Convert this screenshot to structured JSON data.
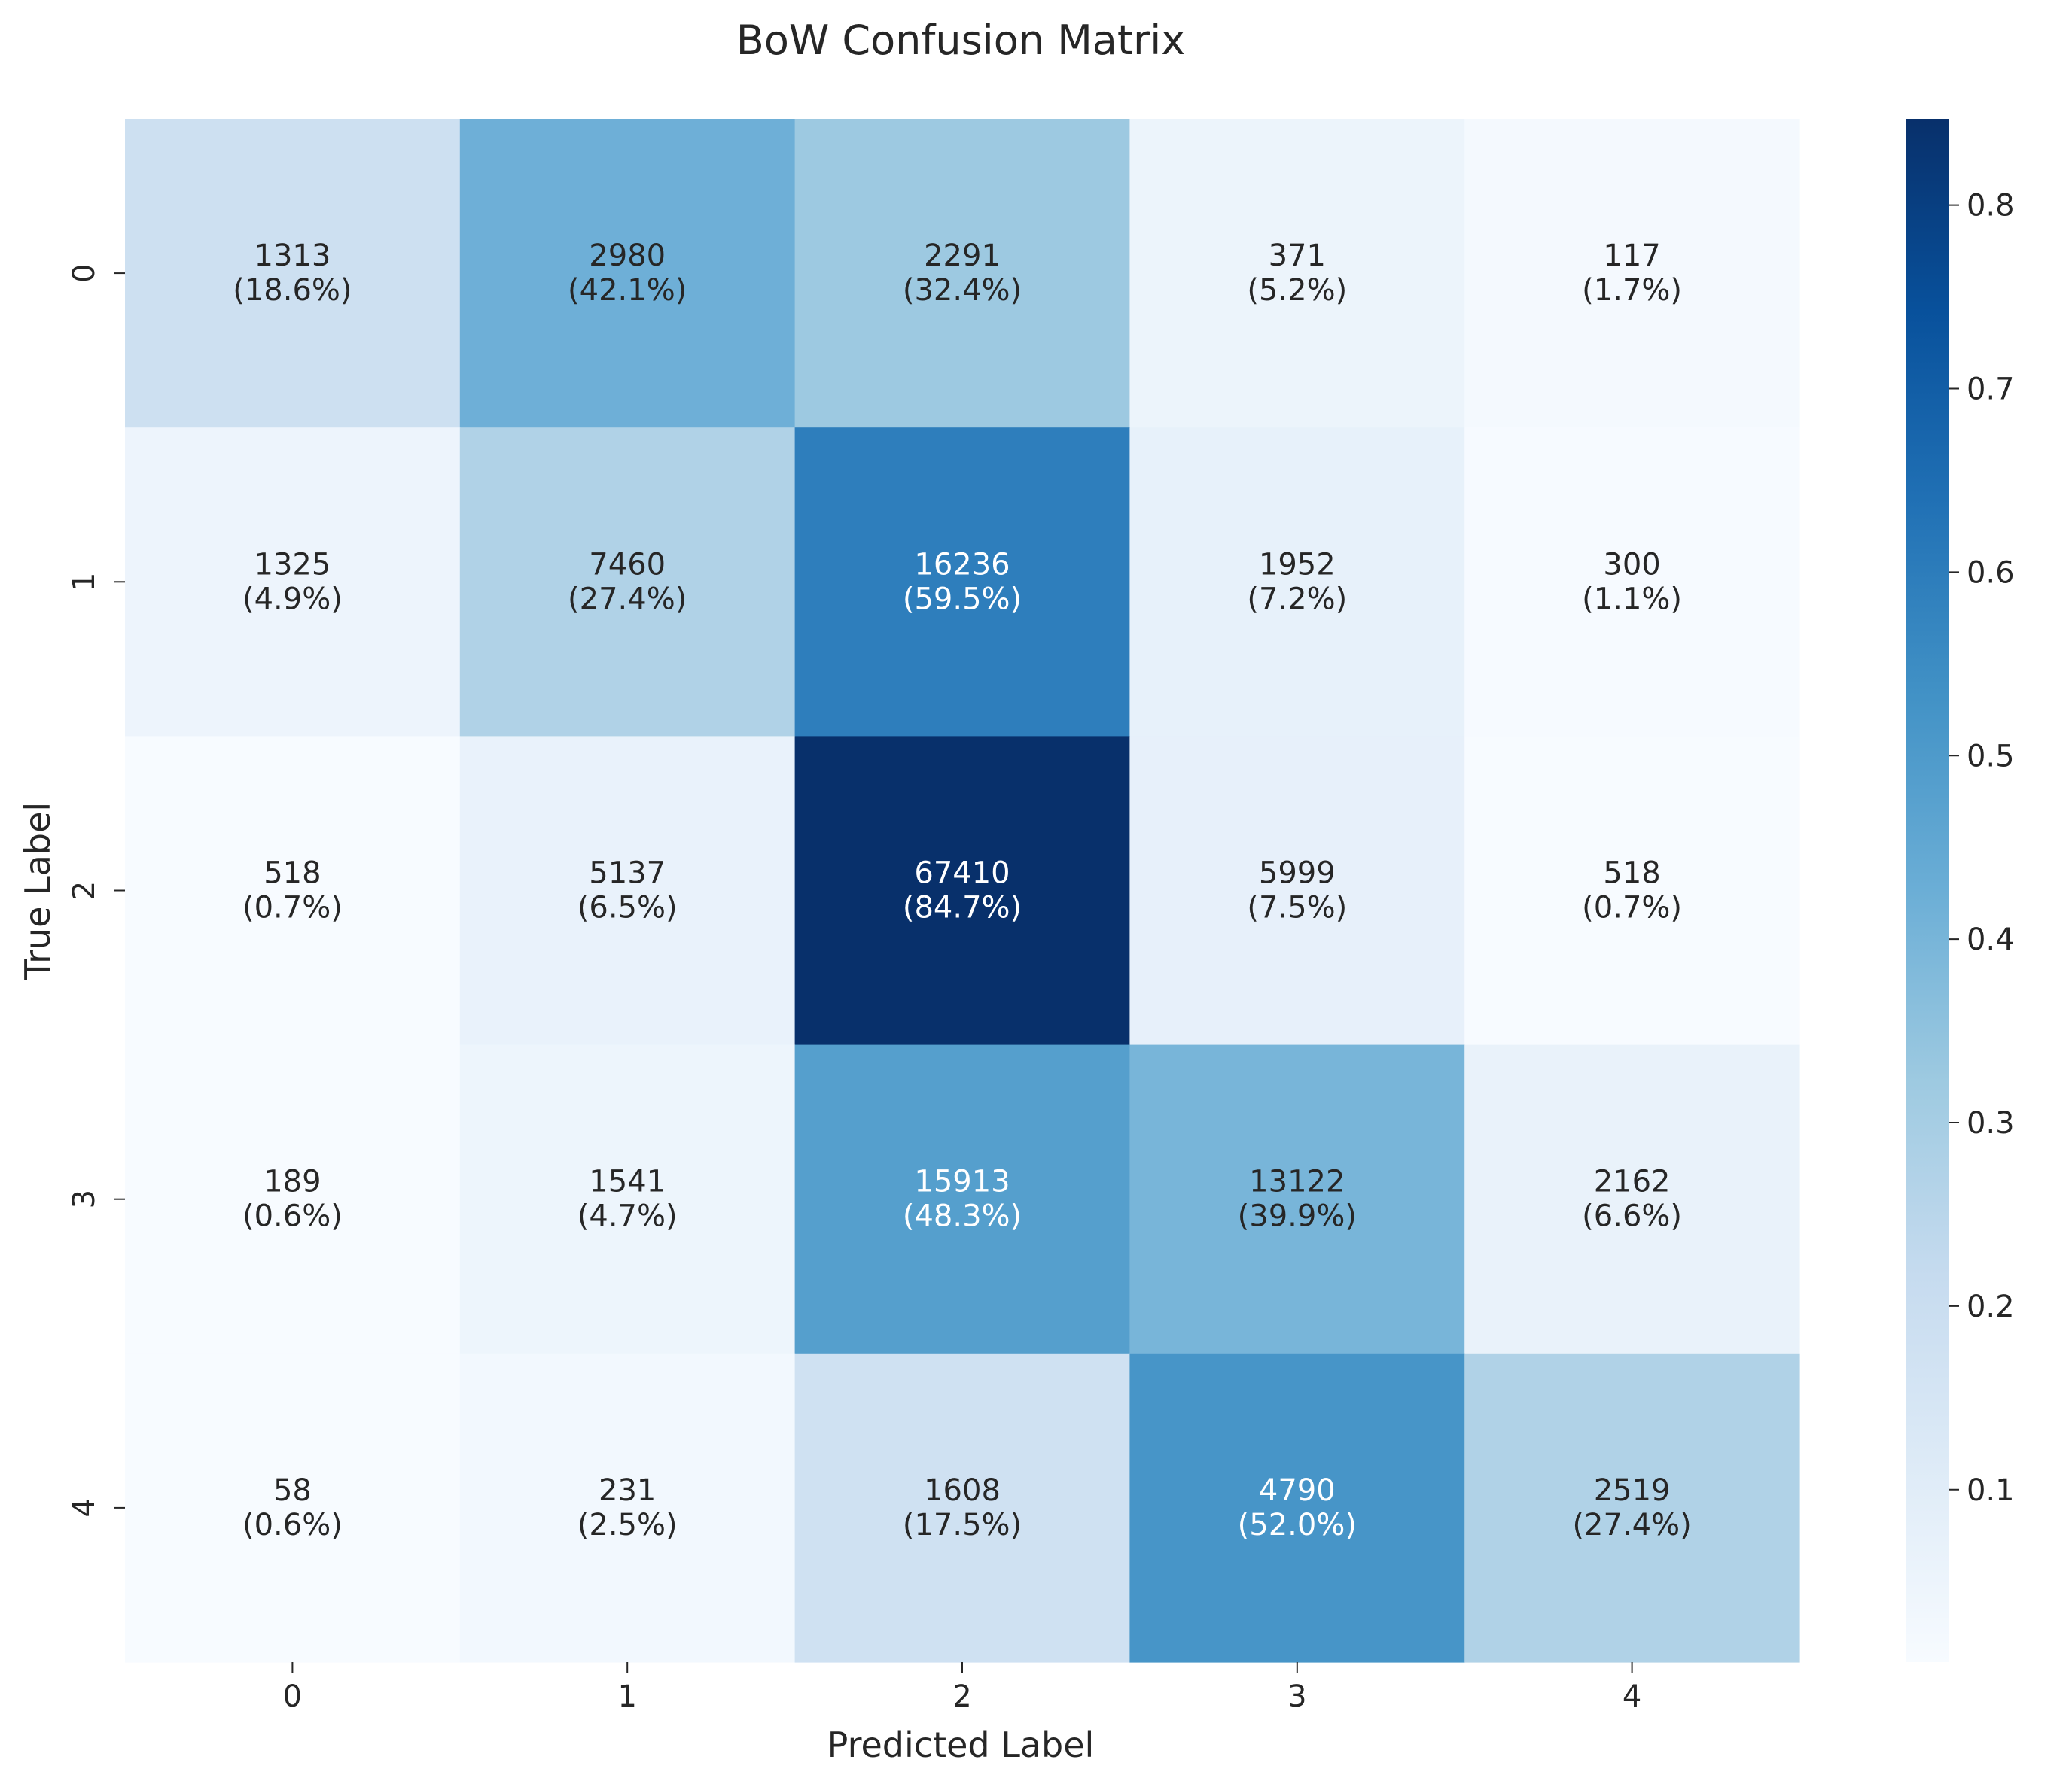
{
  "chart_data": {
    "type": "heatmap",
    "title": "BoW Confusion Matrix",
    "xlabel": "Predicted Label",
    "ylabel": "True Label",
    "x_categories": [
      "0",
      "1",
      "2",
      "3",
      "4"
    ],
    "y_categories": [
      "0",
      "1",
      "2",
      "3",
      "4"
    ],
    "counts": [
      [
        1313,
        2980,
        2291,
        371,
        117
      ],
      [
        1325,
        7460,
        16236,
        1952,
        300
      ],
      [
        518,
        5137,
        67410,
        5999,
        518
      ],
      [
        189,
        1541,
        15913,
        13122,
        2162
      ],
      [
        58,
        231,
        1608,
        4790,
        2519
      ]
    ],
    "percent_labels": [
      [
        "(18.6%)",
        "(42.1%)",
        "(32.4%)",
        "(5.2%)",
        "(1.7%)"
      ],
      [
        "(4.9%)",
        "(27.4%)",
        "(59.5%)",
        "(7.2%)",
        "(1.1%)"
      ],
      [
        "(0.7%)",
        "(6.5%)",
        "(84.7%)",
        "(7.5%)",
        "(0.7%)"
      ],
      [
        "(0.6%)",
        "(4.7%)",
        "(48.3%)",
        "(39.9%)",
        "(6.6%)"
      ],
      [
        "(0.6%)",
        "(2.5%)",
        "(17.5%)",
        "(52.0%)",
        "(27.4%)"
      ]
    ],
    "normalized": [
      [
        0.186,
        0.421,
        0.324,
        0.052,
        0.017
      ],
      [
        0.049,
        0.274,
        0.595,
        0.072,
        0.011
      ],
      [
        0.007,
        0.065,
        0.847,
        0.075,
        0.007
      ],
      [
        0.006,
        0.047,
        0.483,
        0.399,
        0.066
      ],
      [
        0.006,
        0.025,
        0.175,
        0.52,
        0.274
      ]
    ],
    "colorbar": {
      "colormap": "Blues",
      "range": [
        0.006,
        0.847
      ],
      "ticks": [
        "0.1",
        "0.2",
        "0.3",
        "0.4",
        "0.5",
        "0.6",
        "0.7",
        "0.8"
      ]
    },
    "colors": {
      "text_dark": "#262626",
      "text_light": "#ffffff"
    }
  }
}
